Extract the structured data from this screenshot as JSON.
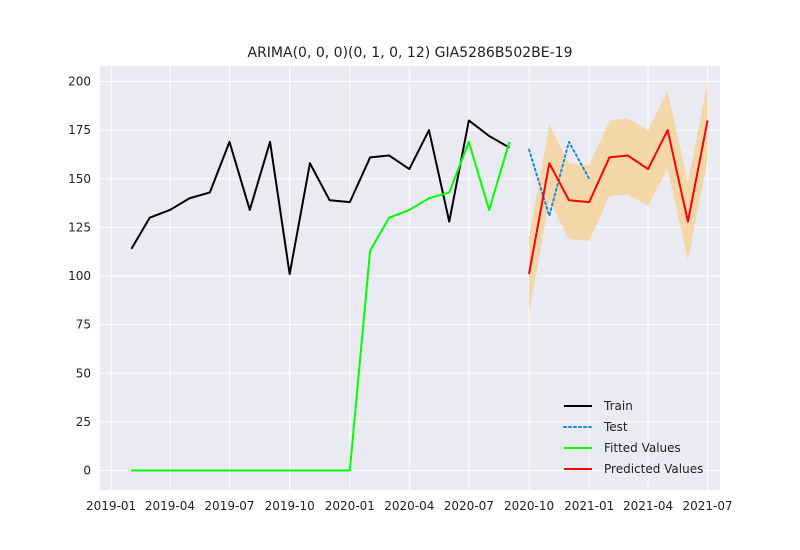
{
  "chart_data": {
    "type": "line",
    "title": "ARIMA(0, 0, 0)(0, 1, 0, 12) GIA5286B502BE-19",
    "xlabel": "",
    "ylabel": "",
    "x_axis_type": "date",
    "xlim": [
      "2018-12-15",
      "2021-07-20"
    ],
    "ylim": [
      -10,
      208
    ],
    "grid": true,
    "legend_placement": "lower-right",
    "xticks": [
      {
        "value": "2019-01-01",
        "label": "2019-01"
      },
      {
        "value": "2019-04-01",
        "label": "2019-04"
      },
      {
        "value": "2019-07-01",
        "label": "2019-07"
      },
      {
        "value": "2019-10-01",
        "label": "2019-10"
      },
      {
        "value": "2020-01-01",
        "label": "2020-01"
      },
      {
        "value": "2020-04-01",
        "label": "2020-04"
      },
      {
        "value": "2020-07-01",
        "label": "2020-07"
      },
      {
        "value": "2020-10-01",
        "label": "2020-10"
      },
      {
        "value": "2021-01-01",
        "label": "2021-01"
      },
      {
        "value": "2021-04-01",
        "label": "2021-04"
      },
      {
        "value": "2021-07-01",
        "label": "2021-07"
      }
    ],
    "yticks": [
      0,
      25,
      50,
      75,
      100,
      125,
      150,
      175,
      200
    ],
    "bands": [
      {
        "color": "#f5d5a0",
        "x": [
          "2020-10-01",
          "2020-11-01",
          "2020-12-01",
          "2021-01-01",
          "2021-02-01",
          "2021-03-01",
          "2021-04-01",
          "2021-05-01",
          "2021-06-01",
          "2021-07-01"
        ],
        "lower": [
          81,
          139,
          119,
          118,
          141,
          142,
          136,
          155,
          108,
          160
        ],
        "upper": [
          120,
          178,
          158,
          157,
          180,
          181,
          175,
          195,
          148,
          200
        ]
      }
    ],
    "series": [
      {
        "name": "Train",
        "color": "#000000",
        "style": "solid",
        "x": [
          "2019-02-01",
          "2019-03-01",
          "2019-04-01",
          "2019-05-01",
          "2019-06-01",
          "2019-07-01",
          "2019-08-01",
          "2019-09-01",
          "2019-10-01",
          "2019-11-01",
          "2019-12-01",
          "2020-01-01",
          "2020-02-01",
          "2020-03-01",
          "2020-04-01",
          "2020-05-01",
          "2020-06-01",
          "2020-07-01",
          "2020-08-01",
          "2020-09-01"
        ],
        "values": [
          114,
          130,
          134,
          140,
          143,
          169,
          134,
          169,
          101,
          158,
          139,
          138,
          161,
          162,
          155,
          175,
          128,
          180,
          172,
          166
        ]
      },
      {
        "name": "Test",
        "color": "#1e88e5",
        "style": "dotted",
        "x": [
          "2020-10-01",
          "2020-11-01",
          "2020-12-01",
          "2021-01-01"
        ],
        "values": [
          165,
          131,
          169,
          150
        ]
      },
      {
        "name": "Fitted Values",
        "color": "#00ff00",
        "style": "solid",
        "x": [
          "2019-02-01",
          "2019-03-01",
          "2019-04-01",
          "2019-05-01",
          "2019-06-01",
          "2019-07-01",
          "2019-08-01",
          "2019-09-01",
          "2019-10-01",
          "2019-11-01",
          "2019-12-01",
          "2020-01-01",
          "2020-02-01",
          "2020-03-01",
          "2020-04-01",
          "2020-05-01",
          "2020-06-01",
          "2020-07-01",
          "2020-08-01",
          "2020-09-01"
        ],
        "values": [
          0,
          0,
          0,
          0,
          0,
          0,
          0,
          0,
          0,
          0,
          0,
          0,
          113,
          130,
          134,
          140,
          143,
          169,
          134,
          169
        ]
      },
      {
        "name": "Predicted Values",
        "color": "#ff0000",
        "style": "solid",
        "x": [
          "2020-10-01",
          "2020-11-01",
          "2020-12-01",
          "2021-01-01",
          "2021-02-01",
          "2021-03-01",
          "2021-04-01",
          "2021-05-01",
          "2021-06-01",
          "2021-07-01"
        ],
        "values": [
          101,
          158,
          139,
          138,
          161,
          162,
          155,
          175,
          128,
          180
        ]
      }
    ]
  }
}
